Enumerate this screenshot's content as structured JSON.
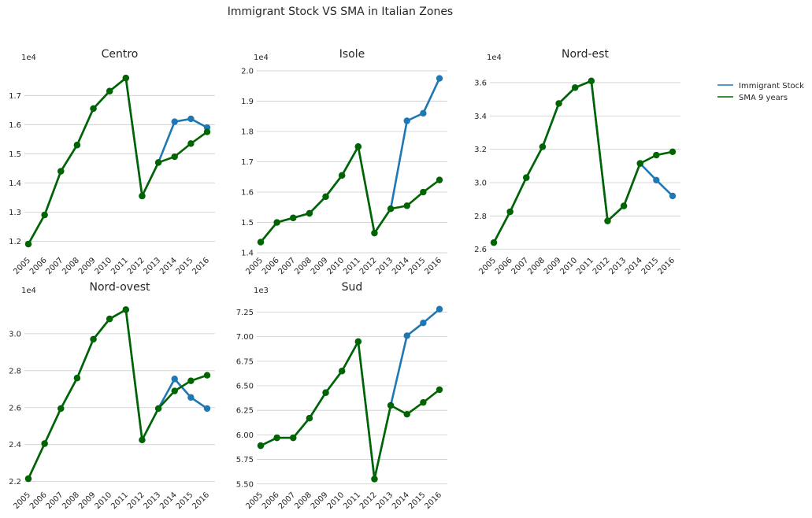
{
  "figure": {
    "suptitle": "Immigrant Stock VS SMA in Italian Zones",
    "legend": {
      "entries": [
        {
          "label": "Immigrant Stock",
          "color": "#1f77b4"
        },
        {
          "label": "SMA 9 years",
          "color": "#006400"
        }
      ],
      "placement": "upper right outside"
    }
  },
  "chart_data": [
    {
      "type": "line",
      "title": "Centro",
      "offset_text": "1e4",
      "categories": [
        "2005",
        "2006",
        "2007",
        "2008",
        "2009",
        "2010",
        "2011",
        "2012",
        "2013",
        "2014",
        "2015",
        "2016"
      ],
      "yticks": [
        "1.2",
        "1.3",
        "1.4",
        "1.5",
        "1.6",
        "1.7"
      ],
      "ylim": [
        1.155,
        1.79
      ],
      "xlabel": "",
      "ylabel": "",
      "grid": "horizontal",
      "series": [
        {
          "name": "Immigrant Stock",
          "color": "#1f77b4",
          "values": [
            1.19,
            1.29,
            1.44,
            1.53,
            1.655,
            1.715,
            1.76,
            1.355,
            1.47,
            1.61,
            1.62,
            1.59
          ]
        },
        {
          "name": "SMA 9 years",
          "color": "#006400",
          "values": [
            1.19,
            1.29,
            1.44,
            1.53,
            1.655,
            1.715,
            1.76,
            1.355,
            1.47,
            1.49,
            1.535,
            1.575
          ]
        }
      ]
    },
    {
      "type": "line",
      "title": "Isole",
      "offset_text": "1e4",
      "categories": [
        "2005",
        "2006",
        "2007",
        "2008",
        "2009",
        "2010",
        "2011",
        "2012",
        "2013",
        "2014",
        "2015",
        "2016"
      ],
      "yticks": [
        "1.4",
        "1.5",
        "1.6",
        "1.7",
        "1.8",
        "1.9",
        "2.0"
      ],
      "ylim": [
        1.395,
        2.005
      ],
      "xlabel": "",
      "ylabel": "",
      "grid": "horizontal",
      "series": [
        {
          "name": "Immigrant Stock",
          "color": "#1f77b4",
          "values": [
            1.435,
            1.5,
            1.515,
            1.53,
            1.585,
            1.655,
            1.75,
            1.465,
            1.545,
            1.835,
            1.86,
            1.975
          ]
        },
        {
          "name": "SMA 9 years",
          "color": "#006400",
          "values": [
            1.435,
            1.5,
            1.515,
            1.53,
            1.585,
            1.655,
            1.75,
            1.465,
            1.545,
            1.555,
            1.6,
            1.64
          ]
        }
      ]
    },
    {
      "type": "line",
      "title": "Nord-est",
      "offset_text": "1e4",
      "categories": [
        "2005",
        "2006",
        "2007",
        "2008",
        "2009",
        "2010",
        "2011",
        "2012",
        "2013",
        "2014",
        "2015",
        "2016"
      ],
      "yticks": [
        "2.6",
        "2.8",
        "3.0",
        "3.2",
        "3.4",
        "3.6"
      ],
      "ylim": [
        2.57,
        3.68
      ],
      "xlabel": "",
      "ylabel": "",
      "grid": "horizontal",
      "series": [
        {
          "name": "Immigrant Stock",
          "color": "#1f77b4",
          "values": [
            2.64,
            2.825,
            3.03,
            3.215,
            3.475,
            3.57,
            3.61,
            2.77,
            2.86,
            3.115,
            3.015,
            2.92
          ]
        },
        {
          "name": "SMA 9 years",
          "color": "#006400",
          "values": [
            2.64,
            2.825,
            3.03,
            3.215,
            3.475,
            3.57,
            3.61,
            2.77,
            2.86,
            3.115,
            3.165,
            3.185
          ]
        }
      ]
    },
    {
      "type": "line",
      "title": "Nord-ovest",
      "offset_text": "1e4",
      "categories": [
        "2005",
        "2006",
        "2007",
        "2008",
        "2009",
        "2010",
        "2011",
        "2012",
        "2013",
        "2014",
        "2015",
        "2016"
      ],
      "yticks": [
        "2.2",
        "2.4",
        "2.6",
        "2.8",
        "3.0"
      ],
      "ylim": [
        2.16,
        3.17
      ],
      "xlabel": "",
      "ylabel": "",
      "grid": "horizontal",
      "series": [
        {
          "name": "Immigrant Stock",
          "color": "#1f77b4",
          "values": [
            2.215,
            2.405,
            2.595,
            2.76,
            2.97,
            3.08,
            3.13,
            2.425,
            2.595,
            2.755,
            2.655,
            2.595
          ]
        },
        {
          "name": "SMA 9 years",
          "color": "#006400",
          "values": [
            2.215,
            2.405,
            2.595,
            2.76,
            2.97,
            3.08,
            3.13,
            2.425,
            2.595,
            2.69,
            2.745,
            2.775
          ]
        }
      ]
    },
    {
      "type": "line",
      "title": "Sud",
      "offset_text": "1e3",
      "categories": [
        "2005",
        "2006",
        "2007",
        "2008",
        "2009",
        "2010",
        "2011",
        "2012",
        "2013",
        "2014",
        "2015",
        "2016"
      ],
      "yticks": [
        "5.50",
        "5.75",
        "6.00",
        "6.25",
        "6.50",
        "6.75",
        "7.00",
        "7.25"
      ],
      "ylim": [
        5.45,
        7.35
      ],
      "xlabel": "",
      "ylabel": "",
      "grid": "horizontal",
      "series": [
        {
          "name": "Immigrant Stock",
          "color": "#1f77b4",
          "values": [
            5.89,
            5.97,
            5.97,
            6.17,
            6.43,
            6.65,
            6.95,
            5.55,
            6.3,
            7.01,
            7.14,
            7.28
          ]
        },
        {
          "name": "SMA 9 years",
          "color": "#006400",
          "values": [
            5.89,
            5.97,
            5.97,
            6.17,
            6.43,
            6.65,
            6.95,
            5.55,
            6.3,
            6.21,
            6.33,
            6.46
          ]
        }
      ]
    }
  ]
}
